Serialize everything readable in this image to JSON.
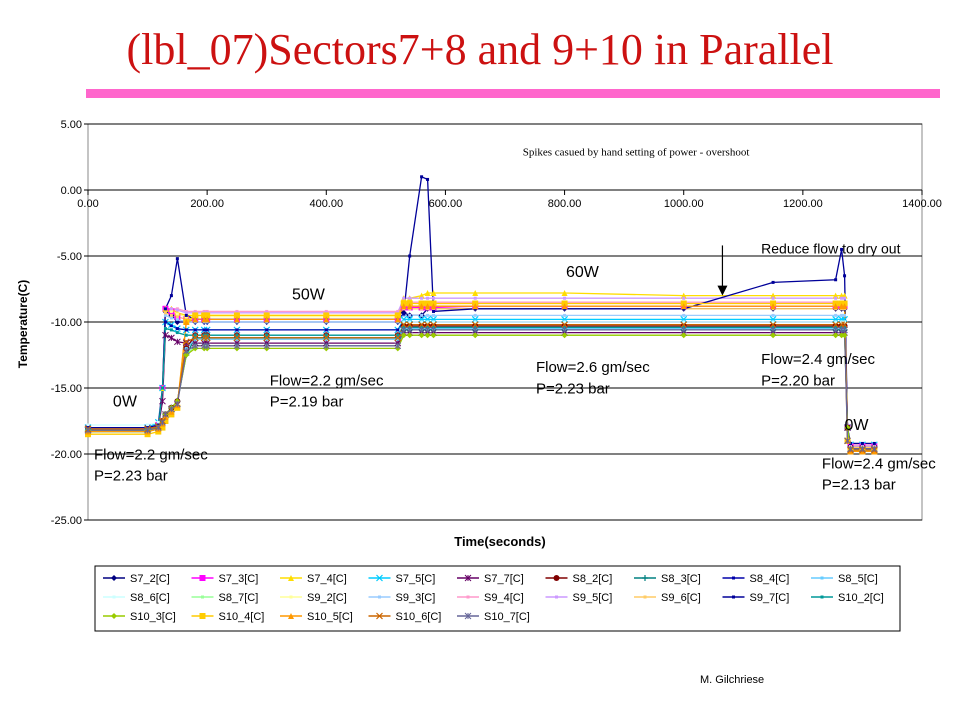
{
  "page": {
    "title": "(lbl_07)Sectors7+8 and 9+10 in Parallel",
    "footer": "M. Gilchriese",
    "accent_color": "#ff66cc",
    "title_color": "#cc1111"
  },
  "chart_data": {
    "type": "line",
    "title": "",
    "xlabel": "Time(seconds)",
    "ylabel": "Temperature(C)",
    "xlim": [
      0,
      1400
    ],
    "ylim": [
      -25,
      5
    ],
    "x_ticks": [
      0,
      200,
      400,
      600,
      800,
      1000,
      1200,
      1400
    ],
    "x_tick_labels": [
      "0.00",
      "200.00",
      "400.00",
      "600.00",
      "800.00",
      "1000.00",
      "1200.00",
      "1400.00"
    ],
    "y_ticks": [
      5,
      0,
      -5,
      -10,
      -15,
      -20,
      -25
    ],
    "y_tick_labels": [
      "5.00",
      "0.00",
      "-5.00",
      "-10.00",
      "-15.00",
      "-20.00",
      "-25.00"
    ],
    "grid": "horizontal",
    "legend_placement": "bottom",
    "x": [
      0,
      100,
      118,
      125,
      130,
      140,
      150,
      165,
      180,
      195,
      200,
      250,
      300,
      400,
      520,
      530,
      540,
      560,
      570,
      580,
      650,
      800,
      1000,
      1150,
      1255,
      1265,
      1270,
      1275,
      1280,
      1300,
      1320
    ],
    "series": [
      {
        "name": "S7_2[C]",
        "color": "#000080",
        "marker": "diamond",
        "values": [
          -18,
          -18,
          -17.8,
          -15,
          -9.2,
          -9.5,
          -10,
          -10,
          -10,
          -10,
          -10,
          -10,
          -10,
          -10,
          -10,
          -9.3,
          -9.5,
          -9.5,
          -9,
          -9,
          -9,
          -9,
          -9,
          -9,
          -9,
          -9,
          -9,
          -18,
          -19.5,
          -19.5,
          -19.5
        ]
      },
      {
        "name": "S7_3[C]",
        "color": "#ff00ff",
        "marker": "square",
        "values": [
          -18,
          -18,
          -17.8,
          -15,
          -9,
          -9.2,
          -9.6,
          -9.8,
          -9.8,
          -9.8,
          -9.8,
          -9.8,
          -9.8,
          -9.8,
          -9.8,
          -8.9,
          -8.9,
          -8.9,
          -8.9,
          -8.9,
          -8.8,
          -8.8,
          -8.8,
          -8.8,
          -8.8,
          -8.8,
          -8.8,
          -18,
          -19.4,
          -19.4,
          -19.4
        ]
      },
      {
        "name": "S7_4[C]",
        "color": "#ffdd00",
        "marker": "triangle",
        "values": [
          -18.2,
          -18.2,
          -18,
          -15,
          -9,
          -9,
          -9.3,
          -9.5,
          -9.5,
          -9.5,
          -9.5,
          -9.5,
          -9.5,
          -9.5,
          -9.5,
          -8.2,
          -8.2,
          -8,
          -7.8,
          -7.8,
          -7.8,
          -7.8,
          -8,
          -8,
          -8,
          -8,
          -8,
          -18,
          -19.6,
          -19.6,
          -19.6
        ]
      },
      {
        "name": "S7_5[C]",
        "color": "#00ccff",
        "marker": "x",
        "values": [
          -18,
          -18,
          -17.6,
          -15,
          -10,
          -10.2,
          -10.5,
          -10.6,
          -10.6,
          -10.6,
          -10.6,
          -10.6,
          -10.6,
          -10.6,
          -10.6,
          -9.8,
          -9.8,
          -9.8,
          -9.8,
          -9.8,
          -9.8,
          -9.8,
          -9.8,
          -9.8,
          -9.8,
          -9.8,
          -9.8,
          -18,
          -19.3,
          -19.3,
          -19.3
        ]
      },
      {
        "name": "S7_7[C]",
        "color": "#660066",
        "marker": "star",
        "values": [
          -18.2,
          -18.2,
          -18,
          -16,
          -11,
          -11.2,
          -11.5,
          -11.6,
          -11.6,
          -11.6,
          -11.6,
          -11.6,
          -11.6,
          -11.6,
          -11.6,
          -10.8,
          -10.8,
          -10.8,
          -10.8,
          -10.8,
          -10.8,
          -10.8,
          -10.8,
          -10.8,
          -10.8,
          -10.8,
          -10.8,
          -18,
          -19.6,
          -19.6,
          -19.6
        ]
      },
      {
        "name": "S8_2[C]",
        "color": "#800000",
        "marker": "circle",
        "values": [
          -18,
          -18,
          -17.9,
          -17.5,
          -17,
          -16.5,
          -16,
          -12,
          -11,
          -11,
          -11,
          -11,
          -11,
          -11,
          -11,
          -10.3,
          -10.3,
          -10.3,
          -10.3,
          -10.3,
          -10.3,
          -10.3,
          -10.3,
          -10.3,
          -10.3,
          -10.3,
          -10.3,
          -18,
          -19.5,
          -19.5,
          -19.5
        ]
      },
      {
        "name": "S8_3[C]",
        "color": "#008080",
        "marker": "plus",
        "values": [
          -18.1,
          -18.1,
          -18,
          -17.6,
          -17,
          -16.5,
          -16,
          -12.5,
          -11.2,
          -11.2,
          -11.2,
          -11.2,
          -11.2,
          -11.2,
          -11.2,
          -10.6,
          -10.6,
          -10.6,
          -10.6,
          -10.6,
          -10.6,
          -10.6,
          -10.6,
          -10.6,
          -10.6,
          -10.6,
          -10.6,
          -18,
          -19.5,
          -19.5,
          -19.5
        ]
      },
      {
        "name": "S8_4[C]",
        "color": "#0000aa",
        "marker": "none",
        "values": [
          -18,
          -18,
          -17.8,
          -15,
          -10,
          -10.3,
          -10.5,
          -10.6,
          -10.6,
          -10.6,
          -10.6,
          -10.6,
          -10.6,
          -10.6,
          -10.6,
          -10,
          -10,
          -10,
          -10,
          -10,
          -10,
          -10,
          -10,
          -10,
          -10,
          -10,
          -10,
          -18,
          -19.4,
          -19.4,
          -19.4
        ]
      },
      {
        "name": "S8_5[C]",
        "color": "#66ccff",
        "marker": "none",
        "values": [
          -18.3,
          -18.3,
          -18.1,
          -17.7,
          -17,
          -16.5,
          -16,
          -12,
          -11.3,
          -11.3,
          -11.3,
          -11.3,
          -11.3,
          -11.3,
          -11.3,
          -10.5,
          -10.5,
          -10.5,
          -10.5,
          -10.5,
          -10.5,
          -10.5,
          -10.5,
          -10.5,
          -10.5,
          -10.5,
          -10.5,
          -18,
          -19.6,
          -19.6,
          -19.6
        ]
      },
      {
        "name": "S8_6[C]",
        "color": "#ccffff",
        "marker": "none",
        "values": [
          -17.8,
          -17.8,
          -17.6,
          -15,
          -10.5,
          -10.5,
          -10.8,
          -11,
          -11,
          -11,
          -11,
          -11,
          -11,
          -11,
          -11,
          -10,
          -10,
          -10,
          -10,
          -10,
          -10,
          -10,
          -10,
          -10,
          -10,
          -10,
          -10,
          -18,
          -19.3,
          -19.3,
          -19.3
        ]
      },
      {
        "name": "S8_7[C]",
        "color": "#99ff99",
        "marker": "none",
        "values": [
          -18.1,
          -18.1,
          -18,
          -17.6,
          -17,
          -16.5,
          -16,
          -12.5,
          -11.8,
          -11.8,
          -11.8,
          -11.8,
          -11.8,
          -11.8,
          -11.8,
          -11,
          -11,
          -11,
          -11,
          -11,
          -11,
          -11,
          -11,
          -11,
          -11,
          -11,
          -11,
          -18,
          -19.6,
          -19.6,
          -19.6
        ]
      },
      {
        "name": "S9_2[C]",
        "color": "#ffff99",
        "marker": "none",
        "values": [
          -18,
          -18,
          -17.8,
          -15,
          -9,
          -9.2,
          -9.4,
          -9.6,
          -9.6,
          -9.6,
          -9.6,
          -9.6,
          -9.6,
          -9.6,
          -9.6,
          -8.6,
          -8.6,
          -8.6,
          -8.6,
          -8.6,
          -8.6,
          -8.6,
          -8.6,
          -8.6,
          -8.6,
          -8.6,
          -8.6,
          -18,
          -19.4,
          -19.4,
          -19.4
        ]
      },
      {
        "name": "S9_3[C]",
        "color": "#99ccff",
        "marker": "none",
        "values": [
          -18.2,
          -18.2,
          -18,
          -15,
          -9.5,
          -9.7,
          -9.8,
          -10,
          -10,
          -10,
          -10,
          -10,
          -10,
          -10,
          -10,
          -9.5,
          -9.5,
          -9.5,
          -9.5,
          -9.5,
          -9.5,
          -9.5,
          -9.5,
          -9.5,
          -9.5,
          -9.5,
          -9.5,
          -18,
          -19.6,
          -19.6,
          -19.6
        ]
      },
      {
        "name": "S9_4[C]",
        "color": "#ff99cc",
        "marker": "none",
        "values": [
          -18,
          -18,
          -17.8,
          -15,
          -9,
          -9,
          -9,
          -9.2,
          -9.2,
          -9.2,
          -9.2,
          -9.2,
          -9.2,
          -9.2,
          -9.2,
          -8.5,
          -8.5,
          -8.5,
          -8.5,
          -8.5,
          -8.5,
          -8.5,
          -8.5,
          -8.5,
          -8.5,
          -8.5,
          -8.5,
          -18,
          -19.3,
          -19.3,
          -19.3
        ]
      },
      {
        "name": "S9_5[C]",
        "color": "#cc99ff",
        "marker": "none",
        "values": [
          -18,
          -18,
          -17.8,
          -15,
          -9,
          -9,
          -9.1,
          -9.3,
          -9.3,
          -9.3,
          -9.3,
          -9.3,
          -9.3,
          -9.3,
          -9.3,
          -8.2,
          -8.2,
          -8.2,
          -8.2,
          -8.2,
          -8.2,
          -8.2,
          -8.2,
          -8.2,
          -8.2,
          -8.2,
          -8.2,
          -18,
          -19.4,
          -19.4,
          -19.4
        ]
      },
      {
        "name": "S9_6[C]",
        "color": "#ffcc66",
        "marker": "none",
        "values": [
          -18.2,
          -18.2,
          -18,
          -15,
          -9.3,
          -9.5,
          -9.6,
          -9.8,
          -9.8,
          -9.8,
          -9.8,
          -9.8,
          -9.8,
          -9.8,
          -9.8,
          -9,
          -9,
          -9,
          -9,
          -9,
          -9,
          -9,
          -9,
          -9,
          -9,
          -9,
          -9,
          -18,
          -19.5,
          -19.5,
          -19.5
        ]
      },
      {
        "name": "S9_7[C]",
        "color": "#000099",
        "marker": "none",
        "values": [
          -18,
          -18,
          -17.8,
          -15,
          -9,
          -8,
          -5.2,
          -9.5,
          -9.8,
          -9.8,
          -9.8,
          -9.8,
          -9.8,
          -9.8,
          -9.8,
          -9.4,
          -5,
          1,
          0.8,
          -9.2,
          -9,
          -9,
          -9,
          -7,
          -6.8,
          -4.5,
          -6.5,
          -18,
          -19.2,
          -19.2,
          -19.2
        ]
      },
      {
        "name": "S10_2[C]",
        "color": "#009999",
        "marker": "none",
        "values": [
          -18.3,
          -18.3,
          -18.1,
          -15,
          -10.5,
          -10.6,
          -10.8,
          -11,
          -11,
          -11,
          -11,
          -11,
          -11,
          -11,
          -11,
          -10.4,
          -10.4,
          -10.4,
          -10.4,
          -10.4,
          -10.4,
          -10.4,
          -10.4,
          -10.4,
          -10.4,
          -10.4,
          -10.4,
          -18,
          -19.6,
          -19.6,
          -19.6
        ]
      },
      {
        "name": "S10_3[C]",
        "color": "#99cc00",
        "marker": "diamond",
        "values": [
          -18.2,
          -18.2,
          -18,
          -17.6,
          -17,
          -16.5,
          -16,
          -12.5,
          -12,
          -12,
          -12,
          -12,
          -12,
          -12,
          -12,
          -11,
          -11,
          -11,
          -11,
          -11,
          -11,
          -11,
          -11,
          -11,
          -11,
          -11,
          -11,
          -18,
          -19.7,
          -19.7,
          -19.7
        ]
      },
      {
        "name": "S10_4[C]",
        "color": "#ffcc00",
        "marker": "square",
        "values": [
          -18.5,
          -18.5,
          -18.3,
          -18,
          -17.5,
          -17,
          -16.5,
          -10,
          -9.5,
          -9.5,
          -9.5,
          -9.5,
          -9.5,
          -9.5,
          -9.5,
          -8.6,
          -8.6,
          -8.6,
          -8.6,
          -8.6,
          -8.6,
          -8.6,
          -8.6,
          -8.6,
          -8.6,
          -8.6,
          -8.6,
          -19,
          -19.8,
          -19.8,
          -19.8
        ]
      },
      {
        "name": "S10_5[C]",
        "color": "#ff9900",
        "marker": "triangle",
        "values": [
          -18.3,
          -18.3,
          -18.1,
          -17.7,
          -17.2,
          -16.8,
          -16.3,
          -10,
          -9.8,
          -9.8,
          -9.8,
          -9.8,
          -9.8,
          -9.8,
          -9.8,
          -8.8,
          -8.8,
          -8.8,
          -8.8,
          -8.8,
          -8.8,
          -8.8,
          -8.8,
          -8.8,
          -8.8,
          -8.8,
          -8.8,
          -19,
          -19.8,
          -19.8,
          -19.8
        ]
      },
      {
        "name": "S10_6[C]",
        "color": "#cc6600",
        "marker": "x",
        "values": [
          -18.1,
          -18.1,
          -17.9,
          -17.5,
          -17,
          -16.6,
          -16.2,
          -11.5,
          -11.2,
          -11.2,
          -11.2,
          -11.2,
          -11.2,
          -11.2,
          -11.2,
          -10.2,
          -10.2,
          -10.2,
          -10.2,
          -10.2,
          -10.2,
          -10.2,
          -10.2,
          -10.2,
          -10.2,
          -10.2,
          -10.2,
          -19,
          -19.7,
          -19.7,
          -19.7
        ]
      },
      {
        "name": "S10_7[C]",
        "color": "#666699",
        "marker": "star",
        "values": [
          -18.2,
          -18.2,
          -18,
          -17.6,
          -17,
          -16.6,
          -16.2,
          -12.2,
          -11.8,
          -11.8,
          -11.8,
          -11.8,
          -11.8,
          -11.8,
          -11.8,
          -10.6,
          -10.6,
          -10.6,
          -10.6,
          -10.6,
          -10.6,
          -10.6,
          -10.6,
          -10.6,
          -10.6,
          -10.6,
          -10.6,
          -19,
          -19.6,
          -19.6,
          -19.6
        ]
      }
    ],
    "annotations": [
      {
        "text": "Spikes casued by hand setting of power - overshoot",
        "x": 920,
        "y": 2.6,
        "anchor": "middle",
        "font": "serif",
        "size": 11
      },
      {
        "text": "Reduce flow to dry out",
        "x": 1130,
        "y": -4.8,
        "anchor": "start",
        "font": "sans",
        "size": 14
      },
      {
        "text": "60W",
        "x": 830,
        "y": -6.6,
        "anchor": "middle",
        "font": "sans",
        "size": 16
      },
      {
        "text": "50W",
        "x": 370,
        "y": -8.3,
        "anchor": "middle",
        "font": "sans",
        "size": 16
      },
      {
        "text": "0W",
        "x": 62,
        "y": -16.4,
        "anchor": "middle",
        "font": "sans",
        "size": 16
      },
      {
        "text": "0W",
        "x": 1290,
        "y": -18.2,
        "anchor": "middle",
        "font": "sans",
        "size": 16
      },
      {
        "text": "Flow=2.6 gm/sec",
        "x": 752,
        "y": -13.8,
        "anchor": "start",
        "font": "sans",
        "size": 15
      },
      {
        "text": "P=2.23 bar",
        "x": 752,
        "y": -15.4,
        "anchor": "start",
        "font": "sans",
        "size": 15
      },
      {
        "text": "Flow=2.2 gm/sec",
        "x": 305,
        "y": -14.8,
        "anchor": "start",
        "font": "sans",
        "size": 15
      },
      {
        "text": "P=2.19 bar",
        "x": 305,
        "y": -16.4,
        "anchor": "start",
        "font": "sans",
        "size": 15
      },
      {
        "text": "Flow=2.4 gm/sec",
        "x": 1130,
        "y": -13.2,
        "anchor": "start",
        "font": "sans",
        "size": 15
      },
      {
        "text": "P=2.20 bar",
        "x": 1130,
        "y": -14.8,
        "anchor": "start",
        "font": "sans",
        "size": 15
      },
      {
        "text": "Flow=2.2 gm/sec",
        "x": 10,
        "y": -20.4,
        "anchor": "start",
        "font": "sans",
        "size": 15
      },
      {
        "text": "P=2.23 bar",
        "x": 10,
        "y": -22,
        "anchor": "start",
        "font": "sans",
        "size": 15
      },
      {
        "text": "Flow=2.4 gm/sec",
        "x": 1232,
        "y": -21.1,
        "anchor": "start",
        "font": "sans",
        "size": 15
      },
      {
        "text": "P=2.13 bar",
        "x": 1232,
        "y": -22.7,
        "anchor": "start",
        "font": "sans",
        "size": 15
      }
    ],
    "arrow": {
      "from": [
        1065,
        -4.2
      ],
      "to": [
        1065,
        -8
      ]
    }
  }
}
